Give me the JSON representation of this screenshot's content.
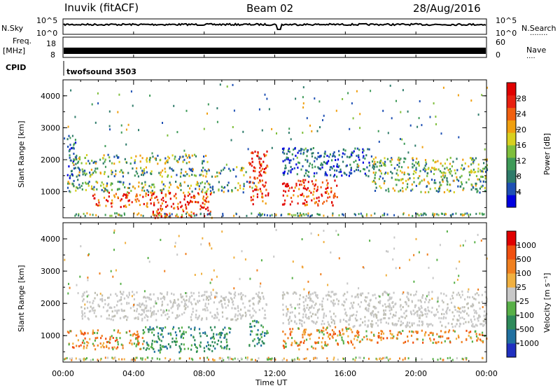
{
  "header": {
    "station": "Inuvik (fitACF)",
    "beam": "Beam 02",
    "date": "28/Aug/2016"
  },
  "noise_panel": {
    "left_label": "N.Sky",
    "left_ticks": [
      "10^5",
      "10^0"
    ],
    "right_ticks": [
      "10^5",
      "10^0"
    ],
    "right_label": "N.Search",
    "right_dots": "........"
  },
  "freq_panel": {
    "left_label_1": "Freq.",
    "left_label_2": "[MHz]",
    "left_ticks": [
      "18",
      "8"
    ],
    "right_ticks": [
      "60",
      "0"
    ],
    "right_label": "Nave",
    "right_dots": "...."
  },
  "cpid_panel": {
    "label": "CPID",
    "program": "twofsound 3503"
  },
  "x_axis": {
    "ticks": [
      "00:00",
      "04:00",
      "08:00",
      "12:00",
      "16:00",
      "20:00",
      "00:00"
    ],
    "label": "Time UT"
  },
  "y_axis": {
    "label": "Slant Range [km]",
    "ticks": [
      "1000",
      "2000",
      "3000",
      "4000"
    ]
  },
  "power_colorbar": {
    "label": "Power [dB]",
    "ticks": [
      "28",
      "24",
      "20",
      "16",
      "12",
      "8",
      "4"
    ],
    "colors": [
      "#0000e0",
      "#1e50b4",
      "#2e7b6a",
      "#3e9a58",
      "#7fbf3c",
      "#d8d020",
      "#f0a010",
      "#f06010",
      "#e82010",
      "#e00000"
    ]
  },
  "velocity_colorbar": {
    "label": "Velocity [m s⁻¹]",
    "ticks": [
      "1000",
      "500",
      "100",
      "25",
      "-25",
      "-100",
      "-500",
      "-1000"
    ],
    "colors": [
      "#2030c0",
      "#2070a0",
      "#2e8a5a",
      "#58b048",
      "#c8c8c8",
      "#f0b040",
      "#f08020",
      "#f05010",
      "#e00000"
    ]
  },
  "chart_data": {
    "type": "heatmap",
    "x_range_hours": [
      0,
      24
    ],
    "y_range_km": [
      180,
      4500
    ],
    "noise_level_log": 0.7,
    "nave_level": 0.75,
    "data_gap_hours": [
      12.1,
      12.4
    ],
    "power_bands": [
      {
        "t0": 0.5,
        "t1": 8.2,
        "r0": 1900,
        "r1": 2200,
        "level": "mid"
      },
      {
        "t0": 0.5,
        "t1": 10.5,
        "r0": 1500,
        "r1": 1800,
        "level": "mid"
      },
      {
        "t0": 0.2,
        "t1": 11.0,
        "r0": 1000,
        "r1": 1350,
        "level": "mid"
      },
      {
        "t0": 1.5,
        "t1": 8.5,
        "r0": 550,
        "r1": 1000,
        "level": "high"
      },
      {
        "t0": 5.0,
        "t1": 8.5,
        "r0": 200,
        "r1": 550,
        "level": "high"
      },
      {
        "t0": 10.5,
        "t1": 11.6,
        "r0": 600,
        "r1": 2300,
        "level": "high"
      },
      {
        "t0": 12.4,
        "t1": 15.5,
        "r0": 600,
        "r1": 1400,
        "level": "high"
      },
      {
        "t0": 12.4,
        "t1": 17.5,
        "r0": 1500,
        "r1": 2400,
        "level": "low"
      },
      {
        "t0": 17.5,
        "t1": 24.0,
        "r0": 1000,
        "r1": 2100,
        "level": "mid"
      },
      {
        "t0": 0.2,
        "t1": 0.8,
        "r0": 1200,
        "r1": 2800,
        "level": "low"
      }
    ],
    "velocity_bands": [
      {
        "t0": 1.0,
        "t1": 11.5,
        "r0": 1500,
        "r1": 2400,
        "level": "ground"
      },
      {
        "t0": 12.4,
        "t1": 24.0,
        "r0": 1300,
        "r1": 2400,
        "level": "ground"
      },
      {
        "t0": 0.2,
        "t1": 4.5,
        "r0": 600,
        "r1": 1200,
        "level": "neg"
      },
      {
        "t0": 4.5,
        "t1": 9.5,
        "r0": 500,
        "r1": 1300,
        "level": "pos"
      },
      {
        "t0": 12.4,
        "t1": 16.5,
        "r0": 600,
        "r1": 1300,
        "level": "neg"
      },
      {
        "t0": 16.5,
        "t1": 24.0,
        "r0": 800,
        "r1": 1200,
        "level": "neg"
      },
      {
        "t0": 10.5,
        "t1": 11.6,
        "r0": 700,
        "r1": 1500,
        "level": "pos"
      }
    ]
  }
}
